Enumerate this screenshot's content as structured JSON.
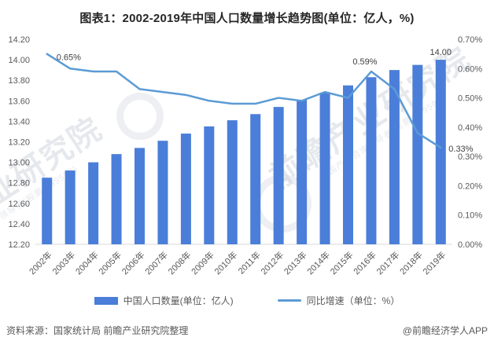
{
  "title": "图表1：2002-2019年中国人口数量增长趋势图(单位：亿人，%)",
  "watermark": {
    "main": "前瞻产业研究院",
    "sub": "中国产业咨询领导者(股票:839599)"
  },
  "chart_data": {
    "type": "bar",
    "title": "图表1：2002-2019年中国人口数量增长趋势图(单位：亿人，%)",
    "categories": [
      "2002年",
      "2003年",
      "2004年",
      "2005年",
      "2006年",
      "2007年",
      "2008年",
      "2009年",
      "2010年",
      "2011年",
      "2012年",
      "2013年",
      "2014年",
      "2015年",
      "2016年",
      "2017年",
      "2018年",
      "2019年"
    ],
    "series": [
      {
        "name": "中国人口数量(单位：亿人)",
        "type": "bar",
        "axis": "left",
        "color": "#4A7ED9",
        "values": [
          12.85,
          12.92,
          13.0,
          13.08,
          13.14,
          13.21,
          13.28,
          13.35,
          13.41,
          13.47,
          13.54,
          13.61,
          13.68,
          13.75,
          13.83,
          13.9,
          13.95,
          14.0
        ]
      },
      {
        "name": "同比增速（单位：%）",
        "type": "line",
        "axis": "right",
        "color": "#5B9BD5",
        "values": [
          0.65,
          0.6,
          0.59,
          0.59,
          0.53,
          0.52,
          0.51,
          0.49,
          0.48,
          0.48,
          0.5,
          0.49,
          0.52,
          0.5,
          0.59,
          0.53,
          0.38,
          0.33
        ]
      }
    ],
    "left_axis": {
      "min": 12.2,
      "max": 14.2,
      "ticks": [
        "14.20",
        "14.00",
        "13.80",
        "13.60",
        "13.40",
        "13.20",
        "13.00",
        "12.80",
        "12.60",
        "12.40",
        "12.20"
      ]
    },
    "right_axis": {
      "min": 0.0,
      "max": 0.7,
      "ticks": [
        "0.70%",
        "0.60%",
        "0.50%",
        "0.40%",
        "0.30%",
        "0.20%",
        "0.10%",
        "0.00%"
      ]
    },
    "annotations": [
      {
        "text": "0.65%",
        "series": 1,
        "index": 0
      },
      {
        "text": "0.59%",
        "series": 1,
        "index": 14
      },
      {
        "text": "14.00",
        "series": 0,
        "index": 17
      },
      {
        "text": "0.33%",
        "series": 1,
        "index": 17
      }
    ],
    "grid": false,
    "legend_position": "bottom"
  },
  "footer": {
    "source": "资料来源：国家统计局 前瞻产业研究院整理",
    "brand": "@前瞻经济学人APP"
  }
}
